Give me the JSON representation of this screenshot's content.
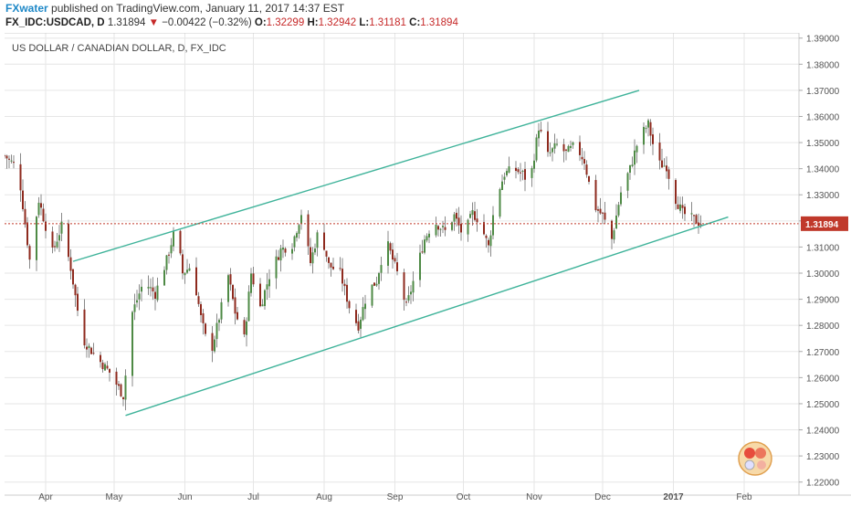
{
  "header": {
    "user": "FXwater",
    "published_text": " published on TradingView.com, January 11, 2017 14:37 EST",
    "symbol": "FX_IDC:USDCAD, D",
    "last": "1.31894",
    "change": "−0.00422 (−0.32%)",
    "o_label": "O:",
    "o_value": "1.32299",
    "h_label": "H:",
    "h_value": "1.32942",
    "l_label": "L:",
    "l_value": "1.31181",
    "c_label": "C:",
    "c_value": "1.31894"
  },
  "colors": {
    "up": "#4e8a45",
    "down": "#8e2a1e",
    "wick": "#888888",
    "channel": "#3fb39a",
    "price_line": "#c0392b",
    "grid": "#e6e6e6",
    "axis_text": "#555555"
  },
  "chart_data": {
    "type": "candlestick",
    "title": "US DOLLAR / CANADIAN DOLLAR, D, FX_IDC",
    "ylim": [
      1.215,
      1.392
    ],
    "y_ticks": [
      "1.22000",
      "1.23000",
      "1.24000",
      "1.25000",
      "1.26000",
      "1.27000",
      "1.28000",
      "1.29000",
      "1.30000",
      "1.31000",
      "1.32000",
      "1.33000",
      "1.34000",
      "1.35000",
      "1.36000",
      "1.37000",
      "1.38000",
      "1.39000"
    ],
    "x_ticks": [
      {
        "label": "Apr",
        "day": 18
      },
      {
        "label": "May",
        "day": 48
      },
      {
        "label": "Jun",
        "day": 79
      },
      {
        "label": "Jul",
        "day": 109
      },
      {
        "label": "Aug",
        "day": 140
      },
      {
        "label": "Sep",
        "day": 171
      },
      {
        "label": "Oct",
        "day": 201
      },
      {
        "label": "Nov",
        "day": 232
      },
      {
        "label": "Dec",
        "day": 262
      },
      {
        "label": "2017",
        "day": 293
      },
      {
        "label": "Feb",
        "day": 324
      }
    ],
    "xlim": [
      0,
      348
    ],
    "last_price": 1.31894,
    "last_price_label": "1.31894",
    "grid": true,
    "channel_upper": [
      {
        "day": 30,
        "price": 1.3045
      },
      {
        "day": 278,
        "price": 1.37
      }
    ],
    "channel_lower": [
      {
        "day": 53,
        "price": 1.2455
      },
      {
        "day": 317,
        "price": 1.3215
      }
    ],
    "anchors": [
      {
        "day": 0,
        "price": 1.345
      },
      {
        "day": 6,
        "price": 1.34
      },
      {
        "day": 11,
        "price": 1.305
      },
      {
        "day": 15,
        "price": 1.328
      },
      {
        "day": 21,
        "price": 1.308
      },
      {
        "day": 25,
        "price": 1.318
      },
      {
        "day": 29,
        "price": 1.302
      },
      {
        "day": 34,
        "price": 1.275
      },
      {
        "day": 40,
        "price": 1.268
      },
      {
        "day": 46,
        "price": 1.262
      },
      {
        "day": 52,
        "price": 1.253
      },
      {
        "day": 56,
        "price": 1.285
      },
      {
        "day": 61,
        "price": 1.297
      },
      {
        "day": 66,
        "price": 1.292
      },
      {
        "day": 71,
        "price": 1.305
      },
      {
        "day": 75,
        "price": 1.318
      },
      {
        "day": 78,
        "price": 1.3
      },
      {
        "day": 82,
        "price": 1.303
      },
      {
        "day": 86,
        "price": 1.283
      },
      {
        "day": 90,
        "price": 1.268
      },
      {
        "day": 94,
        "price": 1.283
      },
      {
        "day": 98,
        "price": 1.299
      },
      {
        "day": 101,
        "price": 1.285
      },
      {
        "day": 105,
        "price": 1.275
      },
      {
        "day": 108,
        "price": 1.3
      },
      {
        "day": 112,
        "price": 1.287
      },
      {
        "day": 116,
        "price": 1.299
      },
      {
        "day": 121,
        "price": 1.309
      },
      {
        "day": 126,
        "price": 1.311
      },
      {
        "day": 130,
        "price": 1.323
      },
      {
        "day": 134,
        "price": 1.304
      },
      {
        "day": 138,
        "price": 1.318
      },
      {
        "day": 142,
        "price": 1.303
      },
      {
        "day": 147,
        "price": 1.3
      },
      {
        "day": 152,
        "price": 1.284
      },
      {
        "day": 155,
        "price": 1.28
      },
      {
        "day": 159,
        "price": 1.293
      },
      {
        "day": 163,
        "price": 1.297
      },
      {
        "day": 167,
        "price": 1.313
      },
      {
        "day": 172,
        "price": 1.3
      },
      {
        "day": 176,
        "price": 1.287
      },
      {
        "day": 180,
        "price": 1.3
      },
      {
        "day": 184,
        "price": 1.313
      },
      {
        "day": 188,
        "price": 1.32
      },
      {
        "day": 193,
        "price": 1.316
      },
      {
        "day": 197,
        "price": 1.322
      },
      {
        "day": 201,
        "price": 1.314
      },
      {
        "day": 205,
        "price": 1.323
      },
      {
        "day": 208,
        "price": 1.32
      },
      {
        "day": 212,
        "price": 1.31
      },
      {
        "day": 215,
        "price": 1.328
      },
      {
        "day": 219,
        "price": 1.338
      },
      {
        "day": 223,
        "price": 1.34
      },
      {
        "day": 227,
        "price": 1.338
      },
      {
        "day": 230,
        "price": 1.334
      },
      {
        "day": 234,
        "price": 1.356
      },
      {
        "day": 238,
        "price": 1.345
      },
      {
        "day": 242,
        "price": 1.349
      },
      {
        "day": 246,
        "price": 1.346
      },
      {
        "day": 250,
        "price": 1.349
      },
      {
        "day": 254,
        "price": 1.343
      },
      {
        "day": 258,
        "price": 1.326
      },
      {
        "day": 262,
        "price": 1.322
      },
      {
        "day": 266,
        "price": 1.313
      },
      {
        "day": 270,
        "price": 1.331
      },
      {
        "day": 274,
        "price": 1.34
      },
      {
        "day": 278,
        "price": 1.352
      },
      {
        "day": 282,
        "price": 1.357
      },
      {
        "day": 286,
        "price": 1.342
      },
      {
        "day": 290,
        "price": 1.341
      },
      {
        "day": 293,
        "price": 1.33
      },
      {
        "day": 297,
        "price": 1.323
      },
      {
        "day": 301,
        "price": 1.321
      },
      {
        "day": 305,
        "price": 1.319
      }
    ]
  }
}
